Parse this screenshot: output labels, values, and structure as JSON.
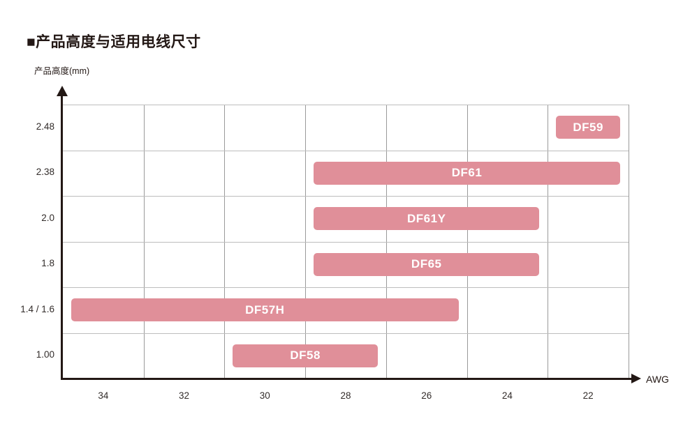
{
  "header": {
    "title": "■产品高度与适用电线尺寸"
  },
  "chart_data": {
    "type": "bar",
    "subtype": "horizontal-range",
    "title": "■产品高度与适用电线尺寸",
    "xlabel": "AWG",
    "ylabel": "产品高度(mm)",
    "x_ticks": [
      "34",
      "32",
      "30",
      "28",
      "26",
      "24",
      "22"
    ],
    "y_ticks": [
      "2.48",
      "2.38",
      "2.0",
      "1.8",
      "1.4 / 1.6",
      "1.00"
    ],
    "grid": true,
    "legend_position": "none",
    "bars": [
      {
        "label": "DF59",
        "height_mm": "2.48",
        "awg_from": 22,
        "awg_to": 22
      },
      {
        "label": "DF61",
        "height_mm": "2.38",
        "awg_from": 28,
        "awg_to": 22
      },
      {
        "label": "DF61Y",
        "height_mm": "2.0",
        "awg_from": 28,
        "awg_to": 24
      },
      {
        "label": "DF65",
        "height_mm": "1.8",
        "awg_from": 28,
        "awg_to": 24
      },
      {
        "label": "DF57H",
        "height_mm": "1.4 / 1.6",
        "awg_from": 34,
        "awg_to": 26
      },
      {
        "label": "DF58",
        "height_mm": "1.00",
        "awg_from": 30,
        "awg_to": 28
      }
    ],
    "colors": {
      "bar": "#e08f99",
      "bar_text": "#ffffff",
      "grid_vertical": "#9a9a9a",
      "grid_horizontal": "#bdbdbd",
      "axis": "#231815",
      "text": "#322c2a"
    }
  }
}
